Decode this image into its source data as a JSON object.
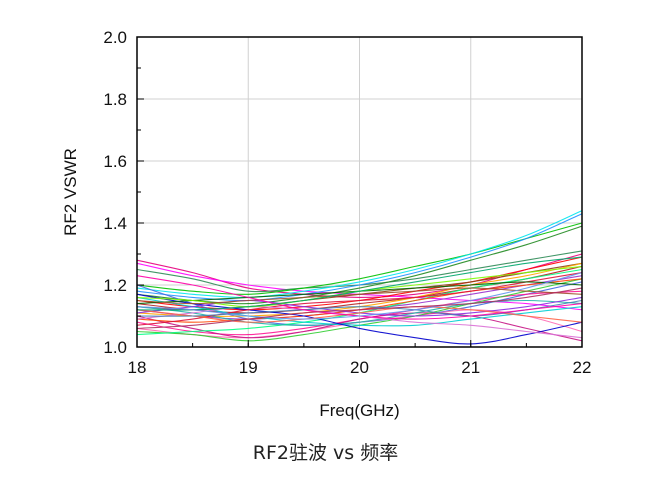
{
  "caption": "RF2驻波 vs 频率",
  "chart_data": {
    "type": "line",
    "title": "",
    "xlabel": "Freq(GHz)",
    "ylabel": "RF2  VSWR",
    "xlim": [
      18,
      22
    ],
    "ylim": [
      1.0,
      2.0
    ],
    "x_ticks": [
      "18",
      "19",
      "20",
      "21",
      "22"
    ],
    "y_ticks": [
      "1.0",
      "1.2",
      "1.4",
      "1.6",
      "1.8",
      "2.0"
    ],
    "grid": true,
    "legend": "none",
    "x": [
      18,
      18.5,
      19,
      19.5,
      20,
      20.5,
      21,
      21.5,
      22
    ],
    "series": [
      {
        "color": "#e6007e",
        "values": [
          1.28,
          1.24,
          1.19,
          1.17,
          1.16,
          1.17,
          1.2,
          1.25,
          1.3
        ]
      },
      {
        "color": "#ff00ff",
        "values": [
          1.27,
          1.23,
          1.2,
          1.18,
          1.17,
          1.16,
          1.15,
          1.14,
          1.12
        ]
      },
      {
        "color": "#2e8b57",
        "values": [
          1.25,
          1.22,
          1.18,
          1.19,
          1.2,
          1.22,
          1.25,
          1.28,
          1.31
        ]
      },
      {
        "color": "#00c000",
        "values": [
          1.2,
          1.18,
          1.17,
          1.19,
          1.22,
          1.26,
          1.3,
          1.35,
          1.4
        ]
      },
      {
        "color": "#00e5ee",
        "values": [
          1.19,
          1.17,
          1.16,
          1.18,
          1.21,
          1.25,
          1.3,
          1.36,
          1.44
        ]
      },
      {
        "color": "#1e90ff",
        "values": [
          1.18,
          1.16,
          1.15,
          1.17,
          1.2,
          1.24,
          1.29,
          1.35,
          1.43
        ]
      },
      {
        "color": "#228b22",
        "values": [
          1.17,
          1.15,
          1.14,
          1.16,
          1.19,
          1.23,
          1.28,
          1.33,
          1.39
        ]
      },
      {
        "color": "#ff0000",
        "values": [
          1.15,
          1.13,
          1.12,
          1.13,
          1.15,
          1.18,
          1.21,
          1.25,
          1.29
        ]
      },
      {
        "color": "#b22222",
        "values": [
          1.14,
          1.12,
          1.11,
          1.12,
          1.14,
          1.16,
          1.19,
          1.22,
          1.26
        ]
      },
      {
        "color": "#8b4513",
        "values": [
          1.13,
          1.12,
          1.13,
          1.15,
          1.17,
          1.19,
          1.21,
          1.24,
          1.27
        ]
      },
      {
        "color": "#9932cc",
        "values": [
          1.12,
          1.1,
          1.09,
          1.1,
          1.12,
          1.14,
          1.17,
          1.2,
          1.23
        ]
      },
      {
        "color": "#4169e1",
        "values": [
          1.2,
          1.14,
          1.09,
          1.07,
          1.08,
          1.1,
          1.13,
          1.17,
          1.21
        ]
      },
      {
        "color": "#ff1493",
        "values": [
          1.08,
          1.05,
          1.04,
          1.06,
          1.09,
          1.12,
          1.15,
          1.17,
          1.18
        ]
      },
      {
        "color": "#ff69b4",
        "values": [
          1.06,
          1.04,
          1.03,
          1.05,
          1.08,
          1.1,
          1.12,
          1.1,
          1.05
        ]
      },
      {
        "color": "#c71585",
        "values": [
          1.1,
          1.06,
          1.03,
          1.05,
          1.09,
          1.11,
          1.1,
          1.06,
          1.02
        ]
      },
      {
        "color": "#32cd32",
        "values": [
          1.05,
          1.04,
          1.02,
          1.04,
          1.07,
          1.1,
          1.14,
          1.18,
          1.22
        ]
      },
      {
        "color": "#00ff7f",
        "values": [
          1.04,
          1.05,
          1.06,
          1.08,
          1.11,
          1.15,
          1.19,
          1.22,
          1.25
        ]
      },
      {
        "color": "#ff4500",
        "values": [
          1.09,
          1.08,
          1.09,
          1.1,
          1.12,
          1.15,
          1.18,
          1.2,
          1.22
        ]
      },
      {
        "color": "#ffa500",
        "values": [
          1.11,
          1.1,
          1.1,
          1.11,
          1.13,
          1.16,
          1.2,
          1.23,
          1.27
        ]
      },
      {
        "color": "#20b2aa",
        "values": [
          1.13,
          1.11,
          1.08,
          1.07,
          1.08,
          1.11,
          1.14,
          1.15,
          1.14
        ]
      },
      {
        "color": "#00ced1",
        "values": [
          1.16,
          1.13,
          1.1,
          1.08,
          1.07,
          1.07,
          1.09,
          1.11,
          1.13
        ]
      },
      {
        "color": "#0000cd",
        "values": [
          1.17,
          1.14,
          1.12,
          1.1,
          1.06,
          1.03,
          1.01,
          1.04,
          1.08
        ]
      },
      {
        "color": "#dc143c",
        "values": [
          1.07,
          1.09,
          1.12,
          1.14,
          1.15,
          1.16,
          1.18,
          1.21,
          1.24
        ]
      },
      {
        "color": "#da70d6",
        "values": [
          1.09,
          1.11,
          1.13,
          1.12,
          1.1,
          1.08,
          1.07,
          1.05,
          1.03
        ]
      },
      {
        "color": "#006400",
        "values": [
          1.14,
          1.15,
          1.16,
          1.17,
          1.18,
          1.19,
          1.2,
          1.21,
          1.2
        ]
      },
      {
        "color": "#8a2be2",
        "values": [
          1.11,
          1.13,
          1.15,
          1.13,
          1.11,
          1.1,
          1.11,
          1.13,
          1.16
        ]
      },
      {
        "color": "#ff6347",
        "values": [
          1.12,
          1.1,
          1.08,
          1.09,
          1.11,
          1.13,
          1.12,
          1.1,
          1.08
        ]
      },
      {
        "color": "#7cfc00",
        "values": [
          1.16,
          1.15,
          1.13,
          1.15,
          1.18,
          1.2,
          1.22,
          1.24,
          1.26
        ]
      },
      {
        "color": "#4682b4",
        "values": [
          1.1,
          1.1,
          1.11,
          1.12,
          1.13,
          1.12,
          1.1,
          1.12,
          1.15
        ]
      },
      {
        "color": "#a0522d",
        "values": [
          1.15,
          1.14,
          1.15,
          1.16,
          1.17,
          1.18,
          1.19,
          1.18,
          1.17
        ]
      },
      {
        "color": "#ff00aa",
        "values": [
          1.23,
          1.2,
          1.16,
          1.12,
          1.1,
          1.09,
          1.1,
          1.12,
          1.14
        ]
      },
      {
        "color": "#00a86b",
        "values": [
          1.12,
          1.12,
          1.13,
          1.15,
          1.18,
          1.21,
          1.24,
          1.27,
          1.29
        ]
      },
      {
        "color": "#6495ed",
        "values": [
          1.13,
          1.12,
          1.1,
          1.09,
          1.1,
          1.12,
          1.15,
          1.19,
          1.24
        ]
      },
      {
        "color": "#b03060",
        "values": [
          1.06,
          1.07,
          1.09,
          1.11,
          1.12,
          1.13,
          1.14,
          1.16,
          1.19
        ]
      }
    ]
  }
}
